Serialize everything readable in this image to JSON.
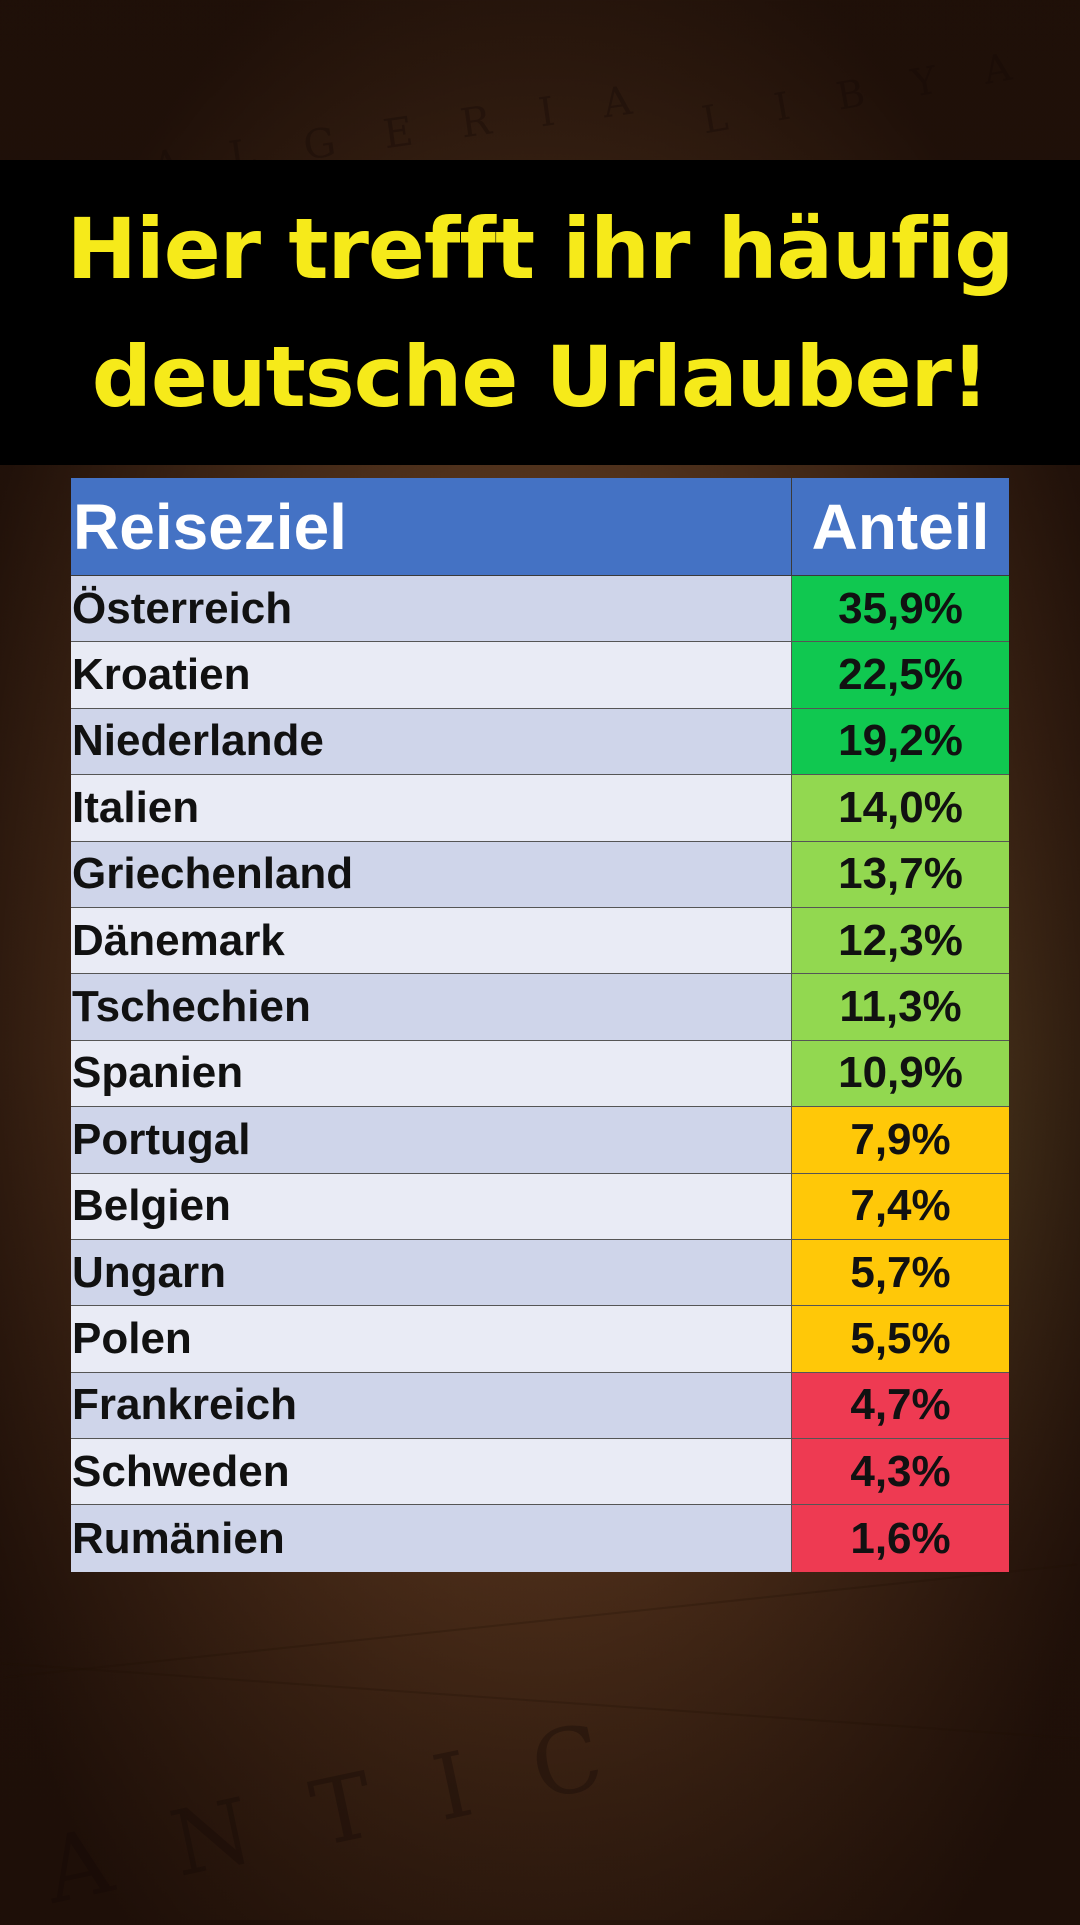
{
  "title": "Hier trefft ihr häufig\ndeutsche Urlauber!",
  "colors": {
    "title_text": "#f6ea1a",
    "title_band": "#000000",
    "header_bg": "#4472c4",
    "row_odd": "#cfd5ea",
    "row_even": "#e9ebf5",
    "tier_dark_green": "#10c850",
    "tier_light_green": "#92d850",
    "tier_yellow": "#ffc808",
    "tier_red": "#ee3a52"
  },
  "chart_data": {
    "type": "table",
    "columns": [
      "Reiseziel",
      "Anteil"
    ],
    "rows": [
      {
        "name": "Österreich",
        "share": "35,9%",
        "value": 35.9,
        "tier": "tier_dark_green"
      },
      {
        "name": "Kroatien",
        "share": "22,5%",
        "value": 22.5,
        "tier": "tier_dark_green"
      },
      {
        "name": "Niederlande",
        "share": "19,2%",
        "value": 19.2,
        "tier": "tier_dark_green"
      },
      {
        "name": "Italien",
        "share": "14,0%",
        "value": 14.0,
        "tier": "tier_light_green"
      },
      {
        "name": "Griechenland",
        "share": "13,7%",
        "value": 13.7,
        "tier": "tier_light_green"
      },
      {
        "name": "Dänemark",
        "share": "12,3%",
        "value": 12.3,
        "tier": "tier_light_green"
      },
      {
        "name": "Tschechien",
        "share": "11,3%",
        "value": 11.3,
        "tier": "tier_light_green"
      },
      {
        "name": "Spanien",
        "share": "10,9%",
        "value": 10.9,
        "tier": "tier_light_green"
      },
      {
        "name": "Portugal",
        "share": "7,9%",
        "value": 7.9,
        "tier": "tier_yellow"
      },
      {
        "name": "Belgien",
        "share": "7,4%",
        "value": 7.4,
        "tier": "tier_yellow"
      },
      {
        "name": "Ungarn",
        "share": "5,7%",
        "value": 5.7,
        "tier": "tier_yellow"
      },
      {
        "name": "Polen",
        "share": "5,5%",
        "value": 5.5,
        "tier": "tier_yellow"
      },
      {
        "name": "Frankreich",
        "share": "4,7%",
        "value": 4.7,
        "tier": "tier_red"
      },
      {
        "name": "Schweden",
        "share": "4,3%",
        "value": 4.3,
        "tier": "tier_red"
      },
      {
        "name": "Rumänien",
        "share": "1,6%",
        "value": 1.6,
        "tier": "tier_red"
      }
    ]
  }
}
